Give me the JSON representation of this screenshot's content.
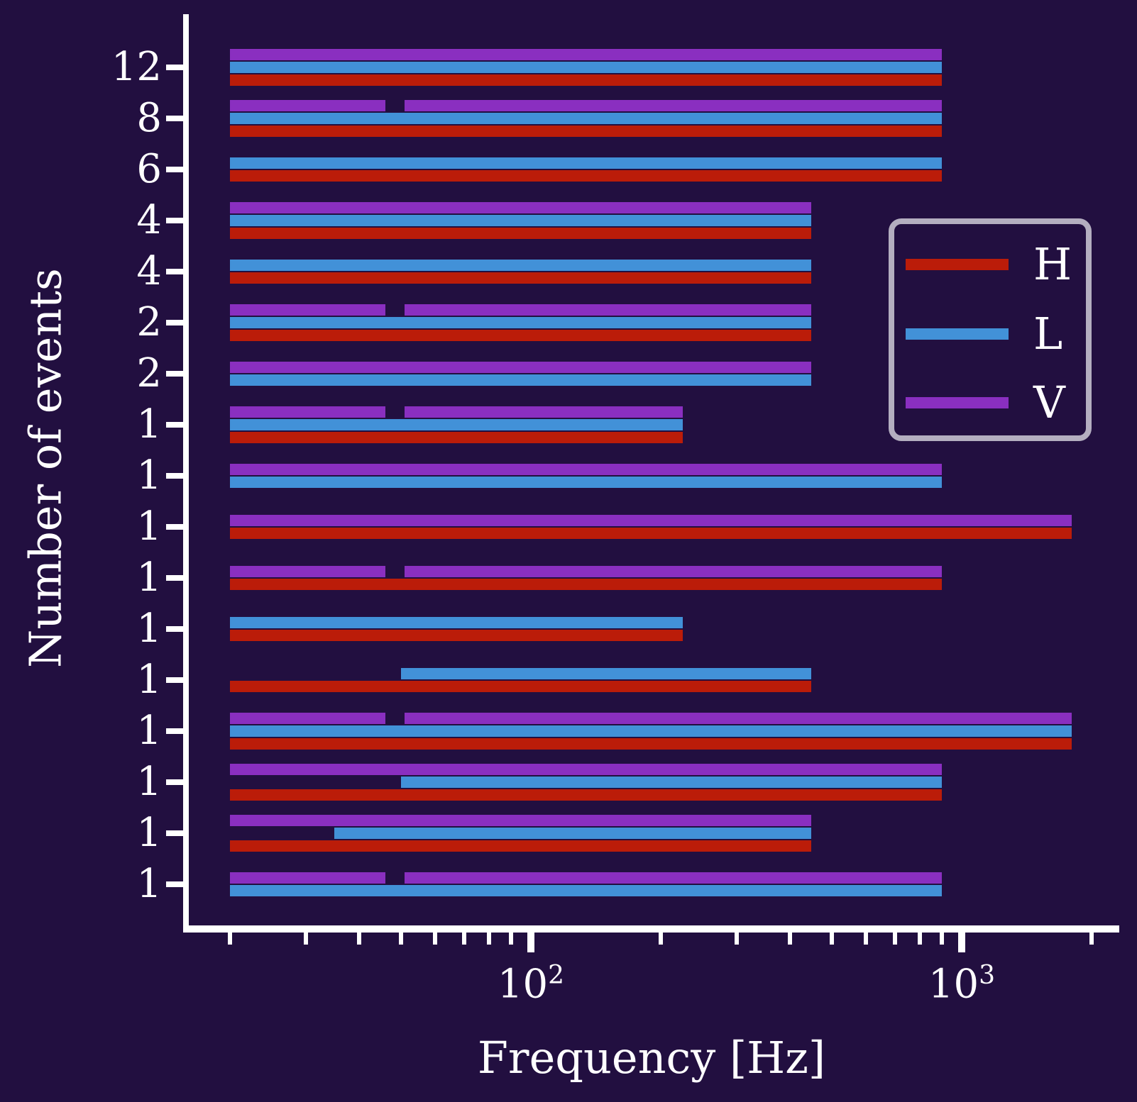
{
  "figure": {
    "background_color": "#220f40",
    "axis_color": "#ffffff",
    "text_color": "#ffffff"
  },
  "colors": {
    "H": "#bb1c09",
    "L": "#4291d8",
    "V": "#8a2fc0"
  },
  "legend": {
    "border_color": "#b4aec0",
    "entries": [
      {
        "key": "H",
        "label": "H"
      },
      {
        "key": "L",
        "label": "L"
      },
      {
        "key": "V",
        "label": "V"
      }
    ]
  },
  "axes": {
    "xlabel": "Frequency [Hz]",
    "ylabel": "Number of events",
    "x_scale": "log",
    "x_major_ticks": [
      {
        "value": 100,
        "base": "10",
        "exp": "2"
      },
      {
        "value": 1000,
        "base": "10",
        "exp": "3"
      }
    ],
    "x_minor_ticks": [
      20,
      30,
      40,
      50,
      60,
      70,
      80,
      90,
      200,
      300,
      400,
      500,
      600,
      700,
      800,
      900,
      2000
    ]
  },
  "chart_data": {
    "type": "bar",
    "orientation": "horizontal-range",
    "title": "",
    "xlabel": "Frequency [Hz]",
    "ylabel": "Number of events",
    "x_range_hz": [
      17,
      2300
    ],
    "bar_start_hz": 20,
    "virgo_notch_hz": [
      46,
      51
    ],
    "series_order_top_to_bottom": [
      "V",
      "L",
      "H"
    ],
    "rows": [
      {
        "events": "12",
        "bars": [
          {
            "detector": "V",
            "fmin": 20,
            "fmax": 900,
            "notch": false
          },
          {
            "detector": "L",
            "fmin": 20,
            "fmax": 900,
            "notch": false
          },
          {
            "detector": "H",
            "fmin": 20,
            "fmax": 900,
            "notch": false
          }
        ]
      },
      {
        "events": "8",
        "bars": [
          {
            "detector": "V",
            "fmin": 20,
            "fmax": 900,
            "notch": true
          },
          {
            "detector": "L",
            "fmin": 20,
            "fmax": 900,
            "notch": false
          },
          {
            "detector": "H",
            "fmin": 20,
            "fmax": 900,
            "notch": false
          }
        ]
      },
      {
        "events": "6",
        "bars": [
          {
            "detector": "L",
            "fmin": 20,
            "fmax": 900,
            "notch": false
          },
          {
            "detector": "H",
            "fmin": 20,
            "fmax": 900,
            "notch": false
          }
        ]
      },
      {
        "events": "4",
        "bars": [
          {
            "detector": "V",
            "fmin": 20,
            "fmax": 448,
            "notch": false
          },
          {
            "detector": "L",
            "fmin": 20,
            "fmax": 448,
            "notch": false
          },
          {
            "detector": "H",
            "fmin": 20,
            "fmax": 448,
            "notch": false
          }
        ]
      },
      {
        "events": "4",
        "bars": [
          {
            "detector": "L",
            "fmin": 20,
            "fmax": 448,
            "notch": false
          },
          {
            "detector": "H",
            "fmin": 20,
            "fmax": 448,
            "notch": false
          }
        ]
      },
      {
        "events": "2",
        "bars": [
          {
            "detector": "V",
            "fmin": 20,
            "fmax": 448,
            "notch": true
          },
          {
            "detector": "L",
            "fmin": 20,
            "fmax": 448,
            "notch": false
          },
          {
            "detector": "H",
            "fmin": 20,
            "fmax": 448,
            "notch": false
          }
        ]
      },
      {
        "events": "2",
        "bars": [
          {
            "detector": "V",
            "fmin": 20,
            "fmax": 448,
            "notch": false
          },
          {
            "detector": "L",
            "fmin": 20,
            "fmax": 448,
            "notch": false
          }
        ]
      },
      {
        "events": "1",
        "bars": [
          {
            "detector": "V",
            "fmin": 20,
            "fmax": 225,
            "notch": true
          },
          {
            "detector": "L",
            "fmin": 20,
            "fmax": 225,
            "notch": false
          },
          {
            "detector": "H",
            "fmin": 20,
            "fmax": 225,
            "notch": false
          }
        ]
      },
      {
        "events": "1",
        "bars": [
          {
            "detector": "V",
            "fmin": 20,
            "fmax": 900,
            "notch": false
          },
          {
            "detector": "L",
            "fmin": 20,
            "fmax": 900,
            "notch": false
          }
        ]
      },
      {
        "events": "1",
        "bars": [
          {
            "detector": "V",
            "fmin": 20,
            "fmax": 1800,
            "notch": false
          },
          {
            "detector": "H",
            "fmin": 20,
            "fmax": 1800,
            "notch": false
          }
        ]
      },
      {
        "events": "1",
        "bars": [
          {
            "detector": "V",
            "fmin": 20,
            "fmax": 900,
            "notch": true
          },
          {
            "detector": "H",
            "fmin": 20,
            "fmax": 900,
            "notch": false
          }
        ]
      },
      {
        "events": "1",
        "bars": [
          {
            "detector": "L",
            "fmin": 20,
            "fmax": 225,
            "notch": false
          },
          {
            "detector": "H",
            "fmin": 20,
            "fmax": 225,
            "notch": false
          }
        ]
      },
      {
        "events": "1",
        "bars": [
          {
            "detector": "L",
            "fmin": 50,
            "fmax": 448,
            "notch": false
          },
          {
            "detector": "H",
            "fmin": 20,
            "fmax": 448,
            "notch": false
          }
        ]
      },
      {
        "events": "1",
        "bars": [
          {
            "detector": "V",
            "fmin": 20,
            "fmax": 1800,
            "notch": true
          },
          {
            "detector": "L",
            "fmin": 20,
            "fmax": 1800,
            "notch": false
          },
          {
            "detector": "H",
            "fmin": 20,
            "fmax": 1800,
            "notch": false
          }
        ]
      },
      {
        "events": "1",
        "bars": [
          {
            "detector": "V",
            "fmin": 20,
            "fmax": 900,
            "notch": false
          },
          {
            "detector": "L",
            "fmin": 50,
            "fmax": 900,
            "notch": false
          },
          {
            "detector": "H",
            "fmin": 20,
            "fmax": 900,
            "notch": false
          }
        ]
      },
      {
        "events": "1",
        "bars": [
          {
            "detector": "V",
            "fmin": 20,
            "fmax": 448,
            "notch": false
          },
          {
            "detector": "L",
            "fmin": 35,
            "fmax": 448,
            "notch": false
          },
          {
            "detector": "H",
            "fmin": 20,
            "fmax": 448,
            "notch": false
          }
        ]
      },
      {
        "events": "1",
        "bars": [
          {
            "detector": "V",
            "fmin": 20,
            "fmax": 900,
            "notch": true
          },
          {
            "detector": "L",
            "fmin": 20,
            "fmax": 900,
            "notch": false
          }
        ]
      }
    ]
  }
}
